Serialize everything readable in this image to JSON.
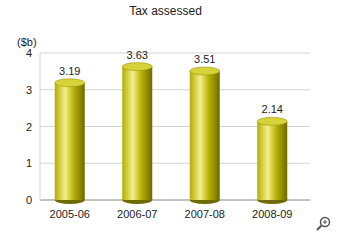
{
  "chart_data": {
    "type": "bar",
    "title": "Tax assessed",
    "ylabel": "($b)",
    "categories": [
      "2005-06",
      "2006-07",
      "2007-08",
      "2008-09"
    ],
    "values": [
      3.19,
      3.63,
      3.51,
      2.14
    ],
    "color": "#b3ae00",
    "ylim": [
      0,
      4
    ],
    "yticks": [
      0,
      1,
      2,
      3,
      4
    ],
    "grid": true,
    "data_labels": true
  }
}
